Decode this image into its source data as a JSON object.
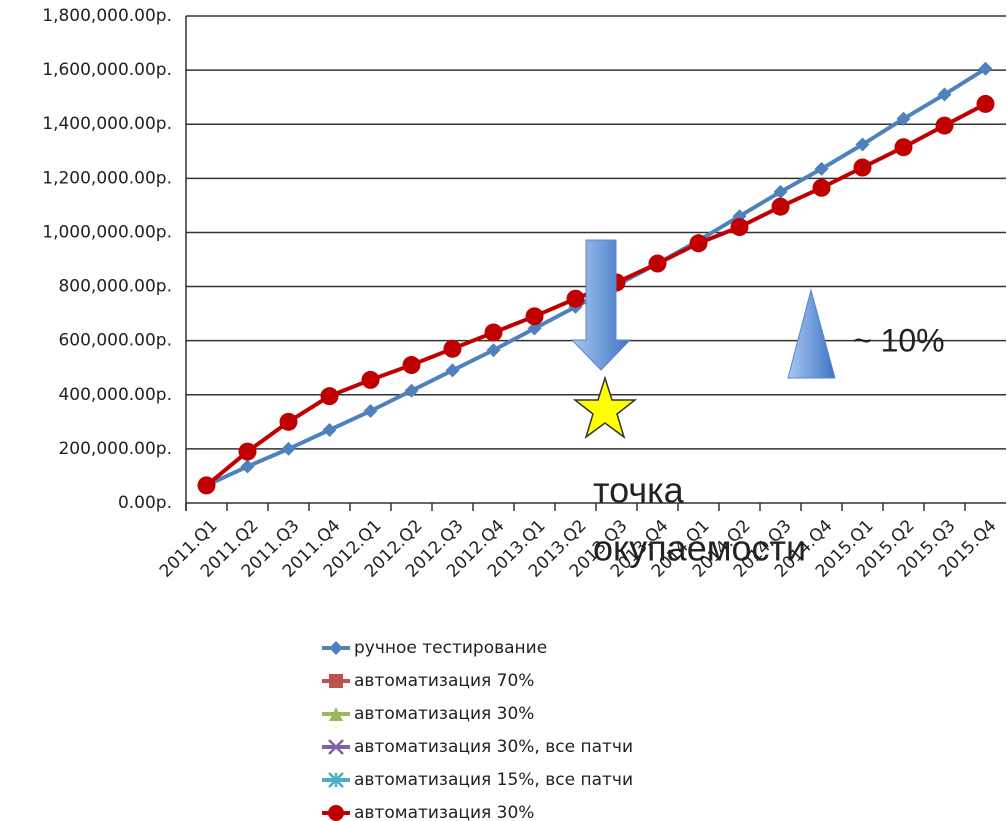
{
  "chart_data": {
    "type": "line",
    "categories": [
      "2011.Q1",
      "2011.Q2",
      "2011.Q3",
      "2011.Q4",
      "2012.Q1",
      "2012.Q2",
      "2012.Q3",
      "2012.Q4",
      "2013.Q1",
      "2013.Q2",
      "2013.Q3",
      "2013.Q4",
      "2014.Q1",
      "2014.Q2",
      "2014.Q3",
      "2014.Q4",
      "2015.Q1",
      "2015.Q2",
      "2015.Q3",
      "2015.Q4"
    ],
    "series": [
      {
        "name": "ручное тестирование",
        "color": "#4f81bd",
        "marker": "diamond",
        "values": [
          65000,
          135000,
          200000,
          270000,
          340000,
          415000,
          490000,
          565000,
          645000,
          725000,
          805000,
          885000,
          970000,
          1060000,
          1150000,
          1235000,
          1325000,
          1420000,
          1510000,
          1605000
        ]
      },
      {
        "name": "автоматизация 70%",
        "color": "#c0504d",
        "marker": "square",
        "values": [
          null,
          null,
          null,
          null,
          null,
          null,
          null,
          null,
          null,
          null,
          null,
          null,
          null,
          null,
          null,
          null,
          null,
          null,
          null,
          null
        ]
      },
      {
        "name": "автоматизация 30%",
        "color": "#9bbb59",
        "marker": "triangle",
        "values": [
          null,
          null,
          null,
          null,
          null,
          null,
          null,
          null,
          null,
          null,
          null,
          null,
          null,
          null,
          null,
          null,
          null,
          null,
          null,
          null
        ]
      },
      {
        "name": "автоматизация 30%, все патчи",
        "color": "#8064a2",
        "marker": "x",
        "values": [
          null,
          null,
          null,
          null,
          null,
          null,
          null,
          null,
          null,
          null,
          null,
          null,
          null,
          null,
          null,
          null,
          null,
          null,
          null,
          null
        ]
      },
      {
        "name": "автоматизация 15%, все патчи",
        "color": "#4bacc6",
        "marker": "asterisk",
        "values": [
          null,
          null,
          null,
          null,
          null,
          null,
          null,
          null,
          null,
          null,
          null,
          null,
          null,
          null,
          null,
          null,
          null,
          null,
          null,
          null
        ]
      },
      {
        "name": "автоматизация 30%",
        "color": "#c00000",
        "marker": "circle",
        "values": [
          65000,
          190000,
          300000,
          395000,
          455000,
          510000,
          570000,
          630000,
          690000,
          755000,
          815000,
          885000,
          960000,
          1020000,
          1095000,
          1165000,
          1240000,
          1315000,
          1395000,
          1475000
        ]
      }
    ],
    "ylim": [
      0,
      1800000
    ],
    "yticks": [
      {
        "value": 0,
        "label": "0.00р."
      },
      {
        "value": 200000,
        "label": "200,000.00р."
      },
      {
        "value": 400000,
        "label": "400,000.00р."
      },
      {
        "value": 600000,
        "label": "600,000.00р."
      },
      {
        "value": 800000,
        "label": "800,000.00р."
      },
      {
        "value": 1000000,
        "label": "1,000,000.00р."
      },
      {
        "value": 1200000,
        "label": "1,200,000.00р."
      },
      {
        "value": 1400000,
        "label": "1,400,000.00р."
      },
      {
        "value": 1600000,
        "label": "1,600,000.00р."
      },
      {
        "value": 1800000,
        "label": "1,800,000.00р."
      }
    ],
    "grid": true,
    "legend": "bottom",
    "annotations": {
      "payback": [
        "точка",
        "окупаемости"
      ],
      "difference": "~ 10%"
    }
  }
}
